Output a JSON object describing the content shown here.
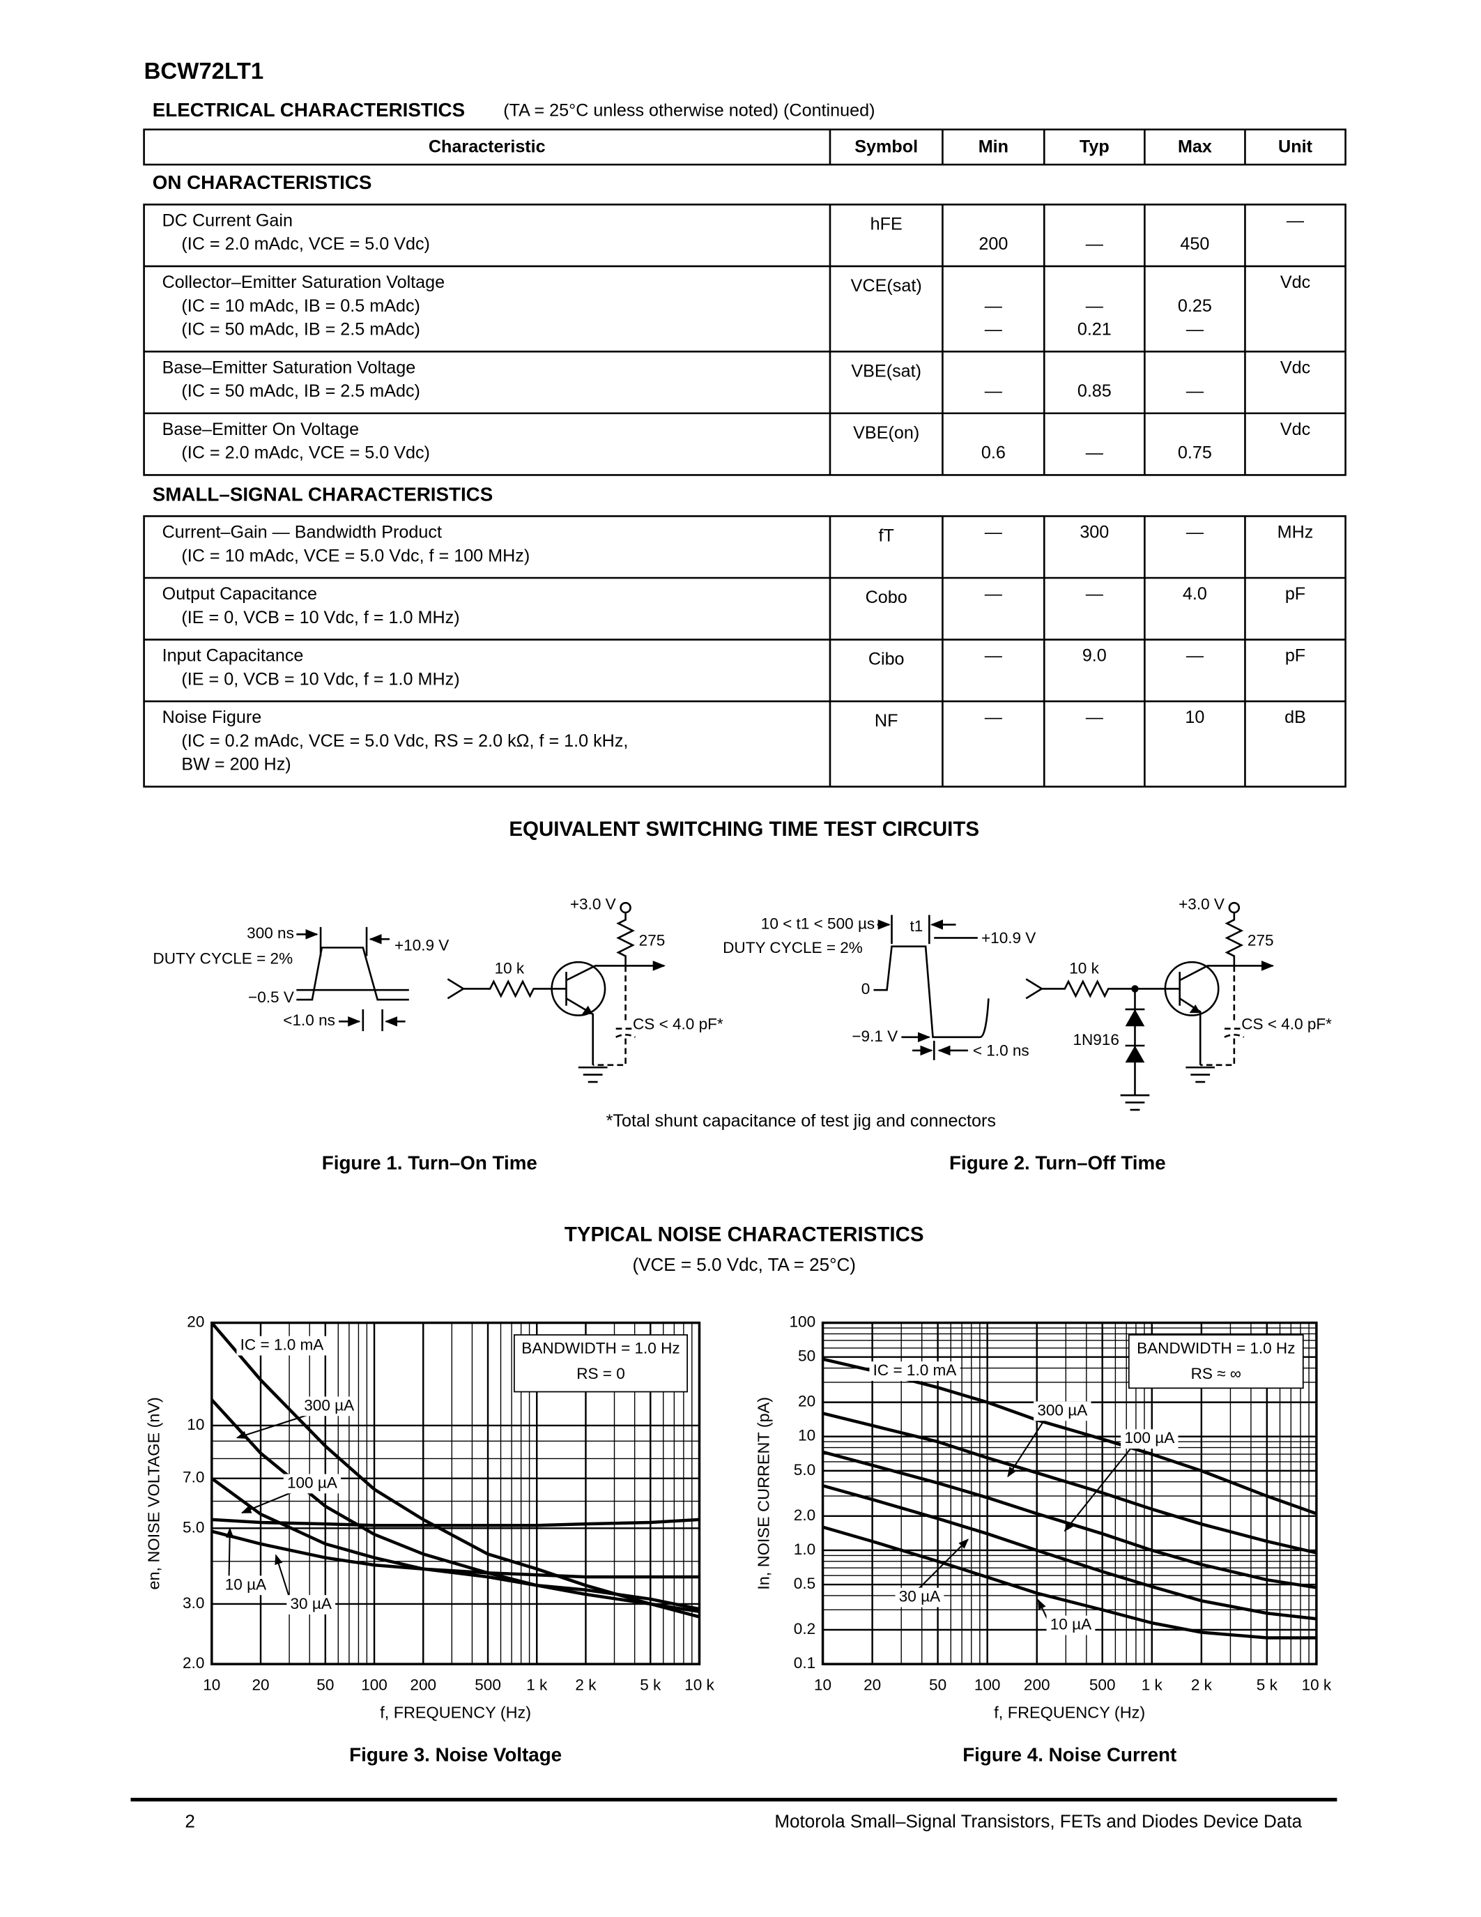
{
  "header": {
    "part": "BCW72LT1"
  },
  "electrical": {
    "title": "ELECTRICAL CHARACTERISTICS",
    "condition": "(TA = 25°C unless otherwise noted) (Continued)",
    "columns": [
      "Characteristic",
      "Symbol",
      "Min",
      "Typ",
      "Max",
      "Unit"
    ],
    "sections": [
      {
        "title": "ON CHARACTERISTICS",
        "rows": [
          {
            "lines": [
              {
                "text": "DC Current Gain"
              },
              {
                "text": "(IC = 2.0 mAdc, VCE = 5.0 Vdc)",
                "min": "200",
                "typ": "—",
                "max": "450"
              }
            ],
            "symbol": "hFE",
            "unit": "—"
          },
          {
            "lines": [
              {
                "text": "Collector–Emitter Saturation Voltage"
              },
              {
                "text": "(IC = 10 mAdc, IB = 0.5 mAdc)",
                "min": "—",
                "typ": "—",
                "max": "0.25"
              },
              {
                "text": "(IC = 50 mAdc, IB = 2.5 mAdc)",
                "min": "—",
                "typ": "0.21",
                "max": "—"
              }
            ],
            "symbol": "VCE(sat)",
            "unit": "Vdc"
          },
          {
            "lines": [
              {
                "text": "Base–Emitter Saturation Voltage"
              },
              {
                "text": "(IC = 50 mAdc, IB = 2.5 mAdc)",
                "min": "—",
                "typ": "0.85",
                "max": "—"
              }
            ],
            "symbol": "VBE(sat)",
            "unit": "Vdc"
          },
          {
            "lines": [
              {
                "text": "Base–Emitter On Voltage"
              },
              {
                "text": "(IC = 2.0 mAdc, VCE = 5.0 Vdc)",
                "min": "0.6",
                "typ": "—",
                "max": "0.75"
              }
            ],
            "symbol": "VBE(on)",
            "unit": "Vdc"
          }
        ]
      },
      {
        "title": "SMALL–SIGNAL CHARACTERISTICS",
        "rows": [
          {
            "lines": [
              {
                "text": "Current–Gain — Bandwidth Product",
                "min": "—",
                "typ": "300",
                "max": "—"
              },
              {
                "text": "(IC = 10 mAdc, VCE = 5.0 Vdc, f = 100 MHz)"
              }
            ],
            "symbol": "fT",
            "unit": "MHz"
          },
          {
            "lines": [
              {
                "text": "Output Capacitance",
                "min": "—",
                "typ": "—",
                "max": "4.0"
              },
              {
                "text": "(IE = 0, VCB = 10 Vdc, f = 1.0 MHz)"
              }
            ],
            "symbol": "Cobo",
            "unit": "pF"
          },
          {
            "lines": [
              {
                "text": "Input Capacitance",
                "min": "—",
                "typ": "9.0",
                "max": "—"
              },
              {
                "text": "(IE = 0, VCB = 10 Vdc, f = 1.0 MHz)"
              }
            ],
            "symbol": "Cibo",
            "unit": "pF"
          },
          {
            "lines": [
              {
                "text": "Noise Figure",
                "min": "—",
                "typ": "—",
                "max": "10"
              },
              {
                "text": "(IC = 0.2 mAdc, VCE = 5.0 Vdc, RS = 2.0 kΩ, f = 1.0 kHz,"
              },
              {
                "text": "BW = 200 Hz)"
              }
            ],
            "symbol": "NF",
            "unit": "dB"
          }
        ]
      }
    ]
  },
  "circuits": {
    "title": "EQUIVALENT SWITCHING TIME TEST CIRCUITS",
    "figure1": {
      "pulse_width": "300 ns",
      "duty_cycle": "DUTY CYCLE = 2%",
      "high": "+10.9 V",
      "low": "−0.5 V",
      "rise": "<1.0 ns",
      "supply": "+3.0 V",
      "load": "275",
      "base_resistor": "10 k",
      "capacitance": "CS < 4.0 pF*",
      "caption": "Figure 1. Turn–On Time"
    },
    "figure2": {
      "pulse_width": "10 < t1 < 500 µs",
      "t1": "t1",
      "duty_cycle": "DUTY CYCLE = 2%",
      "high": "+10.9 V",
      "zero": "0",
      "low": "−9.1 V",
      "fall": "< 1.0 ns",
      "supply": "+3.0 V",
      "load": "275",
      "base_resistor": "10 k",
      "diode": "1N916",
      "capacitance": "CS < 4.0 pF*",
      "caption": "Figure 2. Turn–Off Time"
    },
    "footnote": "*Total shunt capacitance of test jig and connectors"
  },
  "noise": {
    "title": "TYPICAL NOISE CHARACTERISTICS",
    "condition": "(VCE = 5.0 Vdc, TA = 25°C)"
  },
  "chart_data": [
    {
      "type": "line",
      "caption": "Figure 3. Noise Voltage",
      "xlabel": "f, FREQUENCY (Hz)",
      "ylabel": "en, NOISE VOLTAGE (nV)",
      "xscale": "log",
      "yscale": "log",
      "grid": true,
      "xlim": [
        10,
        10000
      ],
      "ylim": [
        2,
        20
      ],
      "xticks": [
        10,
        20,
        50,
        100,
        200,
        500,
        {
          "value": 1000,
          "label": "1 k"
        },
        {
          "value": 2000,
          "label": "2 k"
        },
        {
          "value": 5000,
          "label": "5 k"
        },
        {
          "value": 10000,
          "label": "10 k"
        }
      ],
      "yticks": [
        {
          "value": 2,
          "label": "2.0"
        },
        {
          "value": 3,
          "label": "3.0"
        },
        {
          "value": 5,
          "label": "5.0"
        },
        {
          "value": 7,
          "label": "7.0"
        },
        10,
        20
      ],
      "notes": [
        "BANDWIDTH = 1.0 Hz",
        "RS = 0"
      ],
      "x": [
        10,
        20,
        50,
        100,
        200,
        500,
        1000,
        2000,
        5000,
        10000
      ],
      "series": [
        {
          "name": "IC = 1.0 mA",
          "color": "#000000",
          "values": [
            20,
            13.6,
            8.7,
            6.5,
            5.3,
            4.2,
            3.8,
            3.4,
            3.0,
            2.75
          ]
        },
        {
          "name": "300 µA",
          "color": "#000000",
          "values": [
            11.9,
            8.3,
            5.8,
            4.8,
            4.2,
            3.7,
            3.4,
            3.2,
            3.0,
            2.85
          ]
        },
        {
          "name": "100 µA",
          "color": "#000000",
          "values": [
            7.0,
            5.5,
            4.5,
            4.1,
            3.8,
            3.6,
            3.4,
            3.3,
            3.1,
            2.9
          ]
        },
        {
          "name": "30 µA",
          "color": "#000000",
          "values": [
            4.9,
            4.5,
            4.1,
            3.9,
            3.8,
            3.7,
            3.65,
            3.6,
            3.6,
            3.6
          ]
        },
        {
          "name": "10 µA",
          "color": "#000000",
          "values": [
            5.3,
            5.2,
            5.15,
            5.1,
            5.1,
            5.1,
            5.1,
            5.15,
            5.2,
            5.3
          ]
        }
      ]
    },
    {
      "type": "line",
      "caption": "Figure 4. Noise Current",
      "xlabel": "f, FREQUENCY (Hz)",
      "ylabel": "In, NOISE CURRENT (pA)",
      "xscale": "log",
      "yscale": "log",
      "grid": true,
      "xlim": [
        10,
        10000
      ],
      "ylim": [
        0.1,
        100
      ],
      "xticks": [
        10,
        20,
        50,
        100,
        200,
        500,
        {
          "value": 1000,
          "label": "1 k"
        },
        {
          "value": 2000,
          "label": "2 k"
        },
        {
          "value": 5000,
          "label": "5 k"
        },
        {
          "value": 10000,
          "label": "10 k"
        }
      ],
      "yticks": [
        0.1,
        0.2,
        0.5,
        {
          "value": 1,
          "label": "1.0"
        },
        {
          "value": 2,
          "label": "2.0"
        },
        {
          "value": 5,
          "label": "5.0"
        },
        10,
        20,
        50,
        100
      ],
      "notes": [
        "BANDWIDTH = 1.0 Hz",
        "RS ≈ ∞"
      ],
      "x": [
        10,
        20,
        50,
        100,
        200,
        500,
        1000,
        2000,
        5000,
        10000
      ],
      "series": [
        {
          "name": "IC = 1.0 mA",
          "color": "#000000",
          "values": [
            48,
            38,
            27,
            20,
            14,
            9.5,
            7,
            5,
            3,
            2.1
          ]
        },
        {
          "name": "300 µA",
          "color": "#000000",
          "values": [
            16,
            12.5,
            9,
            6.5,
            4.8,
            3.2,
            2.3,
            1.7,
            1.2,
            0.95
          ]
        },
        {
          "name": "100 µA",
          "color": "#000000",
          "values": [
            7.3,
            5.6,
            3.9,
            2.9,
            2.1,
            1.4,
            1.0,
            0.75,
            0.55,
            0.47
          ]
        },
        {
          "name": "30 µA",
          "color": "#000000",
          "values": [
            3.7,
            2.8,
            1.9,
            1.4,
            1.0,
            0.65,
            0.48,
            0.36,
            0.28,
            0.25
          ]
        },
        {
          "name": "10 µA",
          "color": "#000000",
          "values": [
            1.6,
            1.2,
            0.8,
            0.58,
            0.42,
            0.3,
            0.23,
            0.19,
            0.17,
            0.17
          ]
        }
      ]
    }
  ],
  "footer": {
    "page": "2",
    "text": "Motorola Small–Signal Transistors, FETs and Diodes Device Data"
  }
}
